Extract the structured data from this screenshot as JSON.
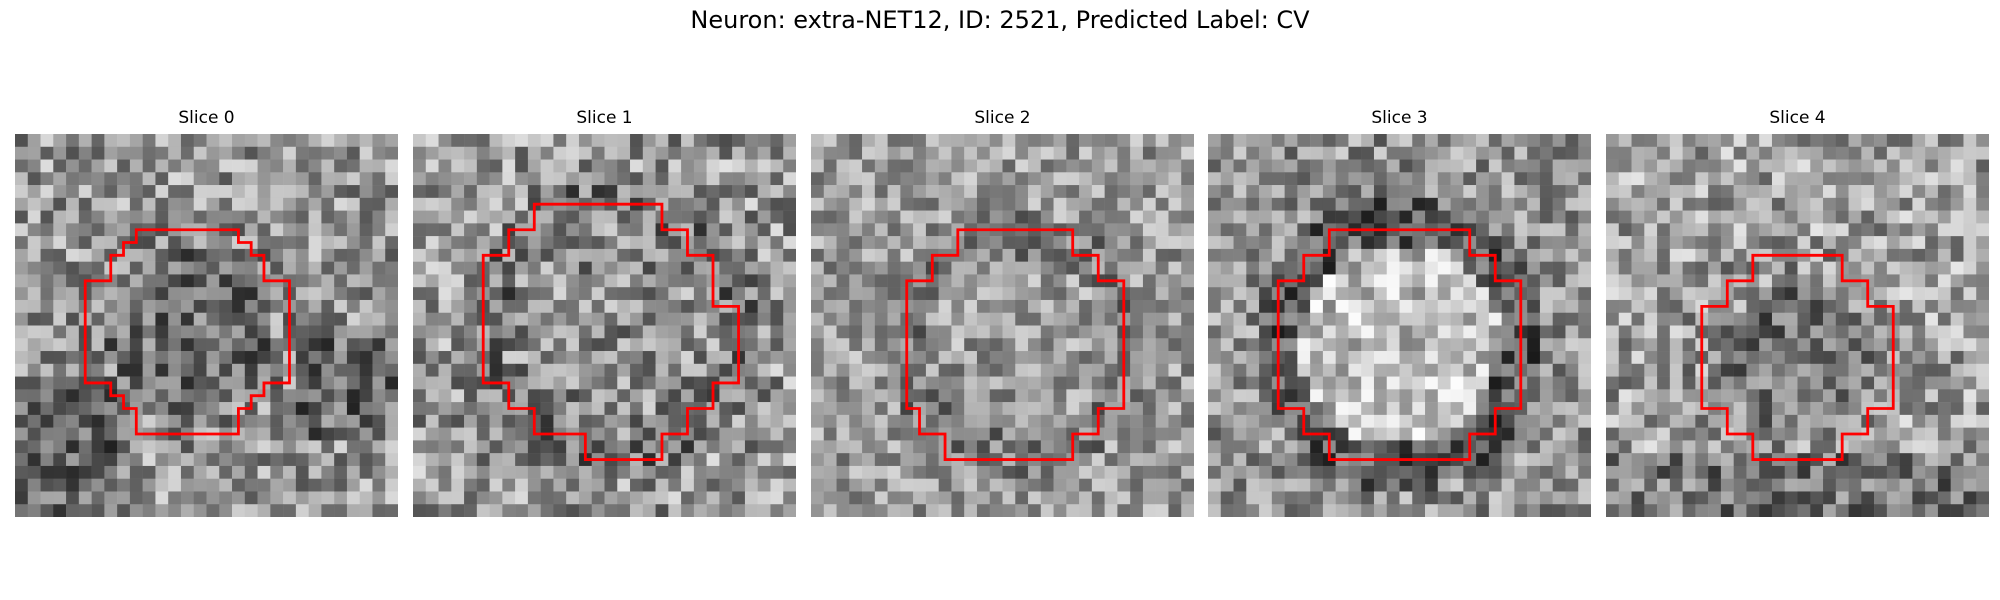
{
  "figure": {
    "title": "Neuron: extra-NET12, ID: 2521, Predicted Label: CV",
    "outline_color": "#ff0000",
    "colormap": "gray",
    "panels": [
      {
        "label": "Slice 0",
        "seed": 11,
        "base": 150,
        "contrast": 70,
        "inner_shift": -40,
        "ring_shift": -10
      },
      {
        "label": "Slice 1",
        "seed": 23,
        "base": 150,
        "contrast": 75,
        "inner_shift": -10,
        "ring_shift": -35
      },
      {
        "label": "Slice 2",
        "seed": 37,
        "base": 155,
        "contrast": 60,
        "inner_shift": 0,
        "ring_shift": -30
      },
      {
        "label": "Slice 3",
        "seed": 49,
        "base": 145,
        "contrast": 65,
        "inner_shift": 45,
        "ring_shift": -55
      },
      {
        "label": "Slice 4",
        "seed": 61,
        "base": 160,
        "contrast": 70,
        "inner_shift": -45,
        "ring_shift": -10
      }
    ]
  }
}
